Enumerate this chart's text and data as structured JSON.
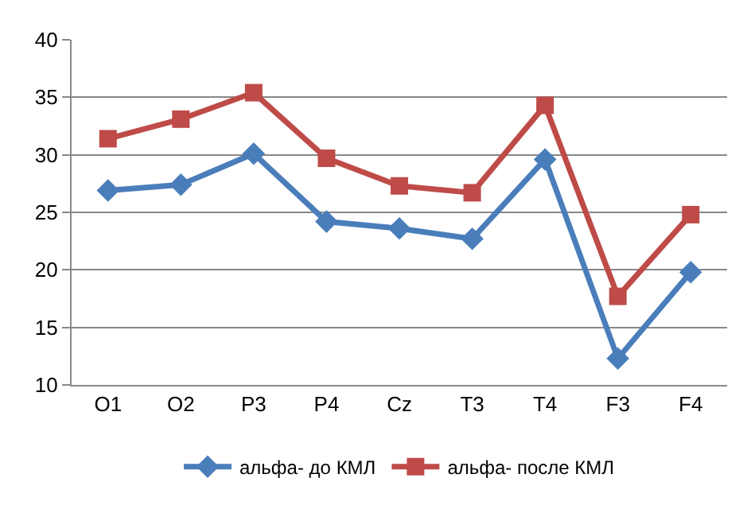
{
  "chart_data": {
    "type": "line",
    "categories": [
      "O1",
      "O2",
      "P3",
      "P4",
      "Cz",
      "T3",
      "T4",
      "F3",
      "F4"
    ],
    "series": [
      {
        "name": "альфа- до КМЛ",
        "color": "#4a7ebb",
        "marker": "diamond",
        "values": [
          26.9,
          27.4,
          30.1,
          24.2,
          23.6,
          22.7,
          29.6,
          12.3,
          19.8
        ]
      },
      {
        "name": "альфа- после КМЛ",
        "color": "#be4b48",
        "marker": "square",
        "values": [
          31.4,
          33.1,
          35.4,
          29.7,
          27.3,
          26.7,
          34.3,
          17.7,
          24.8
        ]
      }
    ],
    "ylim": [
      10,
      40
    ],
    "yticks": [
      10,
      15,
      20,
      25,
      30,
      35,
      40
    ],
    "grid": "y",
    "legend": "bottom",
    "line_style": "solid"
  }
}
